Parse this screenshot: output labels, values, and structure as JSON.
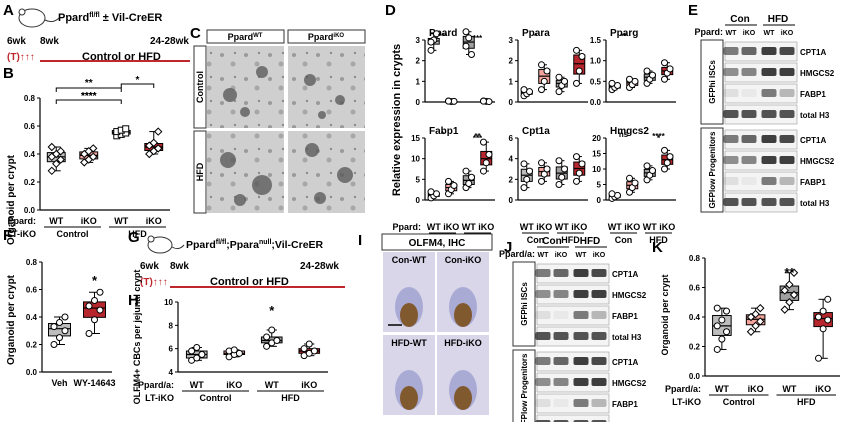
{
  "colors": {
    "wt": "#bdbdbd",
    "ikoCtrl": "#f2a49c",
    "wtHfd": "#a0a0a0",
    "ikoHfd": "#b8262d",
    "red": "#c0272d",
    "wbBand": "#2a2a2a",
    "ihcBrown": "#7a4a12",
    "ihcBlue": "#7b7fbf"
  },
  "panelA": {
    "label": "A",
    "title": "Ppard",
    "title_sup": "fl/fl",
    "title_rest": " ± Vil-CreER",
    "t6": "6wk",
    "t8": "8wk",
    "t24": "24-28wk",
    "tam": "(T)",
    "arrows": "↑↑↑",
    "diet": "Control or HFD"
  },
  "panelB": {
    "label": "B",
    "ylabel": "Organoid per crypt",
    "yticks": [
      "0.0",
      "0.2",
      "0.4",
      "0.6",
      "0.8"
    ],
    "xrow1": "Ppard:",
    "xrow2": "LT-iKO",
    "xticks": [
      "WT",
      "iKO",
      "WT",
      "iKO"
    ],
    "groups": [
      "Control",
      "HFD"
    ],
    "sig": [
      "****",
      "**",
      "*"
    ]
  },
  "chart_data": [
    {
      "panel": "B",
      "type": "box",
      "ylabel": "Organoid per crypt",
      "ylim": [
        0,
        0.8
      ],
      "categories": [
        "Control WT",
        "Control iKO",
        "HFD WT",
        "HFD iKO"
      ],
      "values": [
        [
          0.28,
          0.33,
          0.36,
          0.38,
          0.4,
          0.42,
          0.45
        ],
        [
          0.34,
          0.36,
          0.38,
          0.4,
          0.42,
          0.44
        ],
        [
          0.53,
          0.54,
          0.55,
          0.56,
          0.57,
          0.58
        ],
        [
          0.4,
          0.42,
          0.44,
          0.46,
          0.48,
          0.56
        ]
      ]
    },
    {
      "panel": "F",
      "type": "box",
      "ylabel": "Organoid per crypt",
      "ylim": [
        0,
        0.8
      ],
      "categories": [
        "Veh",
        "WY-14643"
      ],
      "values": [
        [
          0.2,
          0.25,
          0.3,
          0.33,
          0.36,
          0.4
        ],
        [
          0.28,
          0.38,
          0.45,
          0.48,
          0.52,
          0.58
        ]
      ]
    },
    {
      "panel": "H",
      "type": "box",
      "ylabel": "OLFM4+ CBCs per jejunal crypt",
      "ylim": [
        4,
        10
      ],
      "categories": [
        "Control WT",
        "Control iKO",
        "HFD WT",
        "HFD iKO"
      ],
      "values": [
        [
          5.0,
          5.2,
          5.5,
          5.8,
          6.1
        ],
        [
          5.3,
          5.5,
          5.6,
          5.8,
          5.9
        ],
        [
          6.2,
          6.5,
          6.7,
          7.0,
          7.6
        ],
        [
          5.4,
          5.6,
          5.8,
          6.0,
          6.4
        ]
      ]
    },
    {
      "panel": "K",
      "type": "box",
      "ylabel": "Organoid per crypt",
      "ylim": [
        0,
        0.8
      ],
      "categories": [
        "Control WT",
        "Control iKO",
        "HFD WT",
        "HFD iKO"
      ],
      "values": [
        [
          0.18,
          0.25,
          0.3,
          0.34,
          0.38,
          0.44,
          0.46
        ],
        [
          0.3,
          0.34,
          0.37,
          0.4,
          0.42,
          0.46
        ],
        [
          0.45,
          0.5,
          0.55,
          0.58,
          0.62,
          0.7
        ],
        [
          0.12,
          0.32,
          0.38,
          0.4,
          0.44,
          0.52
        ]
      ]
    }
  ],
  "panelC": {
    "label": "C",
    "col1": "Ppard",
    "col1sup": "WT",
    "col2": "Ppard",
    "col2sup": "iKO",
    "row1": "Control",
    "row2": "HFD"
  },
  "panelD": {
    "label": "D",
    "ylabel": "Relative expression in crypts",
    "plots": [
      {
        "title": "Ppard",
        "yticks": [
          "0",
          "1",
          "2",
          "3"
        ],
        "sig": [
          "***",
          "***"
        ]
      },
      {
        "title": "Ppara",
        "yticks": [
          "0",
          "1",
          "2",
          "3"
        ],
        "sig": [
          "*"
        ]
      },
      {
        "title": "Pparg",
        "yticks": [
          "0.0",
          "0.5",
          "1.0",
          "1.5"
        ],
        "sig": [
          "**"
        ]
      },
      {
        "title": "Fabp1",
        "yticks": [
          "0",
          "5",
          "10",
          "15"
        ],
        "sig": [
          "*",
          "**",
          "***"
        ]
      },
      {
        "title": "Cpt1a",
        "yticks": [
          "0",
          "2",
          "4",
          "6"
        ],
        "sig": []
      },
      {
        "title": "Hmgcs2",
        "yticks": [
          "0",
          "5",
          "10",
          "15",
          "20"
        ],
        "sig": [
          "ns",
          "****",
          "*"
        ]
      }
    ],
    "xrow1": "Ppard:",
    "xrow2": "LT-iKO",
    "xticks": [
      "WT",
      "iKO",
      "WT",
      "iKO"
    ],
    "groups": [
      "Con",
      "HFD"
    ]
  },
  "panelE": {
    "label": "E",
    "con": "Con",
    "hfd": "HFD",
    "geno": "Ppard:",
    "wt": "WT",
    "iko": "iKO",
    "sec1": "GFPhi ISCs",
    "sec2": "GFPlow Progenitors",
    "bands": [
      "CPT1A",
      "HMGCS2",
      "FABP1",
      "total H3"
    ]
  },
  "panelF": {
    "label": "F",
    "ylabel": "Organoid per crypt",
    "yticks": [
      "0.0",
      "0.2",
      "0.4",
      "0.6",
      "0.8"
    ],
    "xticks": [
      "Veh",
      "WY-14643"
    ],
    "sig": "*"
  },
  "panelG": {
    "label": "G",
    "title": "Ppard",
    "sup1": "fl/fl",
    "mid": ";Ppara",
    "sup2": "null",
    "rest": ";Vil-CreER",
    "t6": "6wk",
    "t8": "8wk",
    "t24": "24-28wk",
    "tam": "(T)",
    "arrows": "↑↑↑",
    "diet": "Control or HFD"
  },
  "panelH": {
    "label": "H",
    "ylabel": "OLFM4+ CBCs per jejunal crypt",
    "yticks": [
      "4",
      "6",
      "8",
      "10"
    ],
    "xrow1": "Ppard/a:",
    "xrow2": "LT-iKO",
    "xticks": [
      "WT",
      "iKO",
      "WT",
      "iKO"
    ],
    "groups": [
      "Control",
      "HFD"
    ],
    "sig": "*"
  },
  "panelI": {
    "label": "I",
    "title": "OLFM4, IHC",
    "labels": [
      "Con-WT",
      "Con-iKO",
      "HFD-WT",
      "HFD-iKO"
    ]
  },
  "panelJ": {
    "label": "J",
    "con": "Con",
    "hfd": "HFD",
    "geno": "Ppard/a:",
    "wt": "WT",
    "iko": "iKO",
    "sec1": "GFPhi ISCs",
    "sec2": "GFPlow Progenitors",
    "bands": [
      "CPT1A",
      "HMGCS2",
      "FABP1",
      "total H3"
    ]
  },
  "panelK": {
    "label": "K",
    "ylabel": "Organoid per crypt",
    "yticks": [
      "0.0",
      "0.2",
      "0.4",
      "0.6",
      "0.8"
    ],
    "xrow1": "Ppard/a:",
    "xrow2": "LT-iKO",
    "xticks": [
      "WT",
      "iKO",
      "WT",
      "iKO"
    ],
    "groups": [
      "Control",
      "HFD"
    ],
    "sig": "**"
  }
}
